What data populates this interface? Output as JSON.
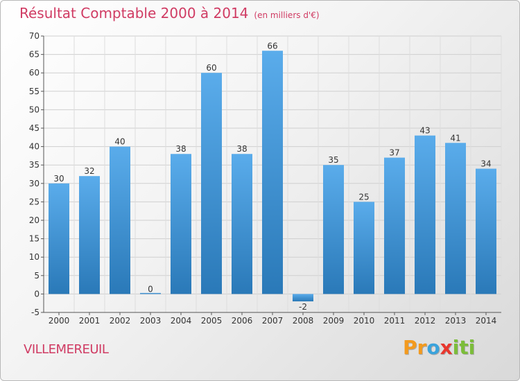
{
  "title": "Résultat Comptable 2000 à 2014",
  "subtitle": "(en milliers d'€)",
  "commune": "VILLEMEREUIL",
  "logo": {
    "letters": [
      "P",
      "r",
      "o",
      "x",
      "i",
      "t",
      "i"
    ],
    "colors": [
      "#f39a1e",
      "#f39a1e",
      "#3aa3dc",
      "#e8372e",
      "#7cbd3a",
      "#7cbd3a",
      "#7cbd3a"
    ]
  },
  "colors": {
    "bar_light": "#5aaceb",
    "bar_dark": "#2a79b8",
    "title": "#d03b63"
  },
  "chart_data": {
    "type": "bar",
    "title": "Résultat Comptable 2000 à 2014",
    "subtitle": "(en milliers d'€)",
    "categories": [
      "2000",
      "2001",
      "2002",
      "2003",
      "2004",
      "2005",
      "2006",
      "2007",
      "2008",
      "2009",
      "2010",
      "2011",
      "2012",
      "2013",
      "2014"
    ],
    "values": [
      30,
      32,
      40,
      0,
      38,
      60,
      38,
      66,
      -2,
      35,
      25,
      37,
      43,
      41,
      34
    ],
    "labels": [
      "30",
      "32",
      "40",
      "0",
      "38",
      "60",
      "38",
      "66",
      "-2",
      "35",
      "25",
      "37",
      "43",
      "41",
      "34"
    ],
    "ylim": [
      -5,
      70
    ],
    "yticks": [
      -5,
      0,
      5,
      10,
      15,
      20,
      25,
      30,
      35,
      40,
      45,
      50,
      55,
      60,
      65,
      70
    ],
    "grid": true
  }
}
